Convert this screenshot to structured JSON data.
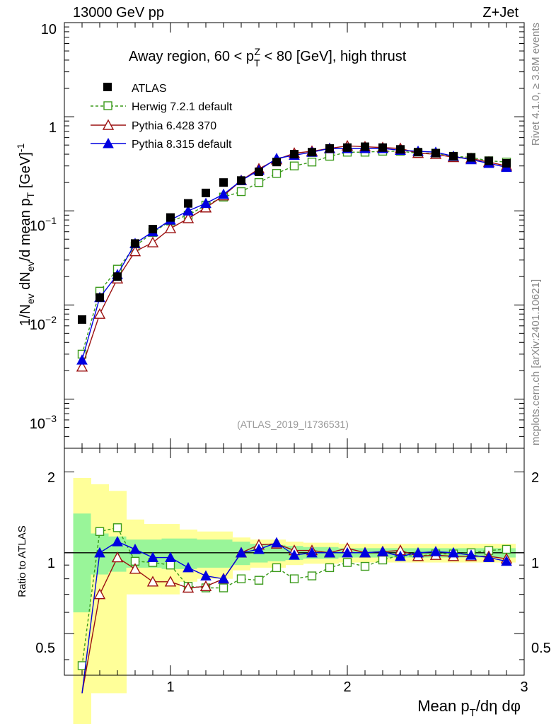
{
  "header": {
    "left": "13000 GeV pp",
    "right": "Z+Jet"
  },
  "side_labels": {
    "rivet": "Rivet 4.1.0, ≥ 3.8M events",
    "mcplots": "mcplots.cern.ch [arXiv:2401.10621]"
  },
  "colors": {
    "atlas": "#000000",
    "herwig": "#3a9a1a",
    "pythia6": "#9b1010",
    "pythia8": "#0000e0",
    "band_inner": "#99f599",
    "band_outer": "#ffff99"
  },
  "chart_data": [
    {
      "type": "scatter",
      "name": "main",
      "title": "Away region, 60 < p_T^Z < 80 [GeV], high thrust",
      "ylabel": "1/N_ev dN_ev/d mean p_T [GeV]^-1",
      "yscale": "log",
      "ylim": [
        0.0003,
        10
      ],
      "xlim": [
        0.4,
        3.0
      ],
      "y_tick_labels": [
        "10",
        "1",
        "10^-1",
        "10^-2",
        "10^-3"
      ],
      "watermark": "(ATLAS_2019_I1736531)",
      "x": [
        0.5,
        0.6,
        0.7,
        0.8,
        0.9,
        1.0,
        1.1,
        1.2,
        1.3,
        1.4,
        1.5,
        1.6,
        1.7,
        1.8,
        1.9,
        2.0,
        2.1,
        2.2,
        2.3,
        2.4,
        2.5,
        2.6,
        2.7,
        2.8,
        2.9
      ],
      "legend": [
        "ATLAS",
        "Herwig 7.2.1 default",
        "Pythia 6.428 370",
        "Pythia 8.315 default"
      ],
      "series": [
        {
          "name": "ATLAS",
          "marker": "square-filled",
          "values": [
            0.007,
            0.012,
            0.02,
            0.045,
            0.064,
            0.085,
            0.12,
            0.155,
            0.2,
            0.21,
            0.26,
            0.33,
            0.4,
            0.42,
            0.46,
            0.47,
            0.48,
            0.47,
            0.45,
            0.42,
            0.41,
            0.38,
            0.37,
            0.34,
            0.32
          ]
        },
        {
          "name": "Herwig 7.2.1 default",
          "marker": "square-open",
          "dashed": true,
          "values": [
            0.003,
            0.014,
            0.024,
            0.042,
            0.059,
            0.078,
            0.09,
            0.115,
            0.14,
            0.16,
            0.2,
            0.25,
            0.3,
            0.33,
            0.38,
            0.42,
            0.42,
            0.43,
            0.43,
            0.41,
            0.41,
            0.38,
            0.37,
            0.34,
            0.33
          ]
        },
        {
          "name": "Pythia 6.428 370",
          "marker": "triangle-open",
          "values": [
            0.0022,
            0.008,
            0.019,
            0.037,
            0.046,
            0.065,
            0.083,
            0.108,
            0.145,
            0.21,
            0.28,
            0.35,
            0.41,
            0.43,
            0.46,
            0.49,
            0.48,
            0.47,
            0.46,
            0.41,
            0.4,
            0.37,
            0.36,
            0.33,
            0.3
          ]
        },
        {
          "name": "Pythia 8.315 default",
          "marker": "triangle-filled",
          "values": [
            0.0026,
            0.012,
            0.021,
            0.045,
            0.06,
            0.08,
            0.1,
            0.12,
            0.15,
            0.21,
            0.27,
            0.36,
            0.39,
            0.42,
            0.46,
            0.46,
            0.46,
            0.46,
            0.44,
            0.43,
            0.42,
            0.38,
            0.35,
            0.32,
            0.29
          ]
        }
      ]
    },
    {
      "type": "scatter",
      "name": "ratio",
      "ylabel": "Ratio to ATLAS",
      "xlabel": "Mean p_T/dη dφ",
      "ylim": [
        0.35,
        2.45
      ],
      "xlim": [
        0.4,
        3.0
      ],
      "x_tick_labels": [
        "1",
        "2",
        "3"
      ],
      "y_tick_labels": [
        "2",
        "1",
        "0.5"
      ],
      "x": [
        0.5,
        0.6,
        0.7,
        0.8,
        0.9,
        1.0,
        1.1,
        1.2,
        1.3,
        1.4,
        1.5,
        1.6,
        1.7,
        1.8,
        1.9,
        2.0,
        2.1,
        2.2,
        2.3,
        2.4,
        2.5,
        2.6,
        2.7,
        2.8,
        2.9
      ],
      "band_inner": [
        [
          0.6,
          1.4
        ],
        [
          0.83,
          1.18
        ],
        [
          0.85,
          1.15
        ],
        [
          0.88,
          1.12
        ],
        [
          0.88,
          1.12
        ],
        [
          0.87,
          1.13
        ],
        [
          0.87,
          1.13
        ],
        [
          0.88,
          1.12
        ],
        [
          0.88,
          1.12
        ],
        [
          0.9,
          1.1
        ],
        [
          0.92,
          1.08
        ],
        [
          0.93,
          1.07
        ],
        [
          0.94,
          1.06
        ],
        [
          0.95,
          1.05
        ],
        [
          0.95,
          1.05
        ],
        [
          0.96,
          1.04
        ],
        [
          0.96,
          1.04
        ],
        [
          0.96,
          1.04
        ],
        [
          0.96,
          1.04
        ],
        [
          0.96,
          1.04
        ],
        [
          0.96,
          1.04
        ],
        [
          0.96,
          1.04
        ],
        [
          0.96,
          1.04
        ],
        [
          0.96,
          1.04
        ],
        [
          0.96,
          1.04
        ]
      ],
      "band_outer": [
        [
          0.2,
          1.9
        ],
        [
          0.3,
          1.8
        ],
        [
          0.3,
          1.7
        ],
        [
          0.7,
          1.33
        ],
        [
          0.7,
          1.28
        ],
        [
          0.7,
          1.28
        ],
        [
          0.78,
          1.22
        ],
        [
          0.8,
          1.2
        ],
        [
          0.8,
          1.2
        ],
        [
          0.86,
          1.14
        ],
        [
          0.88,
          1.12
        ],
        [
          0.88,
          1.12
        ],
        [
          0.9,
          1.1
        ],
        [
          0.91,
          1.09
        ],
        [
          0.91,
          1.09
        ],
        [
          0.92,
          1.08
        ],
        [
          0.92,
          1.08
        ],
        [
          0.92,
          1.08
        ],
        [
          0.92,
          1.08
        ],
        [
          0.92,
          1.08
        ],
        [
          0.92,
          1.08
        ],
        [
          0.92,
          1.08
        ],
        [
          0.92,
          1.08
        ],
        [
          0.92,
          1.08
        ],
        [
          0.92,
          1.08
        ]
      ],
      "series": [
        {
          "name": "Herwig 7.2.1 default",
          "values": [
            0.38,
            1.2,
            1.24,
            0.93,
            0.92,
            0.9,
            0.75,
            0.74,
            0.74,
            0.8,
            0.79,
            0.88,
            0.8,
            0.82,
            0.88,
            0.92,
            0.89,
            0.94,
            0.98,
            0.97,
            0.99,
            0.99,
            1.0,
            1.02,
            1.03
          ]
        },
        {
          "name": "Pythia 6.428 370",
          "values": [
            0.3,
            0.7,
            0.96,
            0.87,
            0.78,
            0.78,
            0.74,
            0.75,
            0.8,
            1.0,
            1.07,
            1.08,
            1.02,
            1.02,
            1.0,
            1.04,
            1.0,
            1.01,
            1.02,
            0.97,
            0.98,
            0.97,
            0.97,
            0.97,
            0.95
          ]
        },
        {
          "name": "Pythia 8.315 default",
          "values": [
            0.3,
            1.0,
            1.1,
            1.03,
            0.96,
            0.96,
            0.88,
            0.82,
            0.8,
            1.0,
            1.03,
            1.09,
            0.98,
            1.0,
            1.0,
            1.0,
            1.0,
            1.01,
            0.97,
            1.0,
            1.01,
            1.0,
            0.98,
            0.96,
            0.93
          ]
        }
      ]
    }
  ]
}
